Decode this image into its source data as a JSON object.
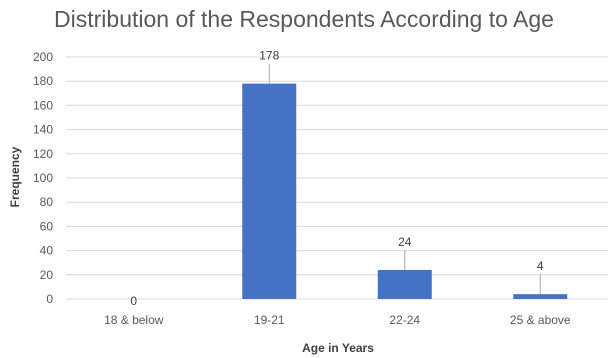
{
  "chart_data": {
    "type": "bar",
    "title": "Distribution of the Respondents According to Age",
    "xlabel": "Age in Years",
    "ylabel": "Frequency",
    "categories": [
      "18 & below",
      "19-21",
      "22-24",
      "25 & above"
    ],
    "values": [
      0,
      178,
      24,
      4
    ],
    "data_labels": [
      "0",
      "178",
      "24",
      "4"
    ],
    "ylim": [
      0,
      200
    ],
    "yticks": [
      0,
      20,
      40,
      60,
      80,
      100,
      120,
      140,
      160,
      180,
      200
    ],
    "grid": true,
    "legend": "none",
    "bar_color": "#4472C4",
    "grid_color": "#D9D9D9",
    "leader_line_color": "#A6A6A6"
  }
}
